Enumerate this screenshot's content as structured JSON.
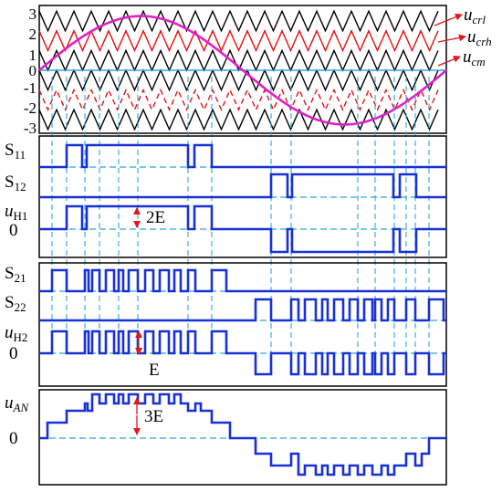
{
  "top_plot": {
    "y_ticks": [
      "3",
      "2",
      "1",
      "0",
      "-1",
      "-2",
      "-3"
    ],
    "legend": [
      {
        "main": "u",
        "sub": "crl"
      },
      {
        "main": "u",
        "sub": "crh"
      },
      {
        "main": "u",
        "sub": "cm"
      }
    ]
  },
  "panel1": {
    "labels": [
      {
        "main": "S",
        "sub": "11"
      },
      {
        "main": "S",
        "sub": "12"
      },
      {
        "main": "u",
        "sub": "H1"
      },
      {
        "main": "0",
        "sub": ""
      }
    ],
    "amplitude": "2E"
  },
  "panel2": {
    "labels": [
      {
        "main": "S",
        "sub": "21"
      },
      {
        "main": "S",
        "sub": "22"
      },
      {
        "main": "u",
        "sub": "H2"
      },
      {
        "main": "0",
        "sub": ""
      }
    ],
    "amplitude": "E"
  },
  "panel3": {
    "labels": [
      {
        "main": "u",
        "sub": "AN"
      },
      {
        "main": "0",
        "sub": ""
      }
    ],
    "amplitude": "3E"
  },
  "colors": {
    "carrier_black": "#000000",
    "carrier_red": "#e81010",
    "modulating": "#e020c8",
    "zero_line": "#2aa8d8",
    "pulse": "#1730d8",
    "dashed": "#2aa8d8",
    "arrow": "#e01818"
  }
}
